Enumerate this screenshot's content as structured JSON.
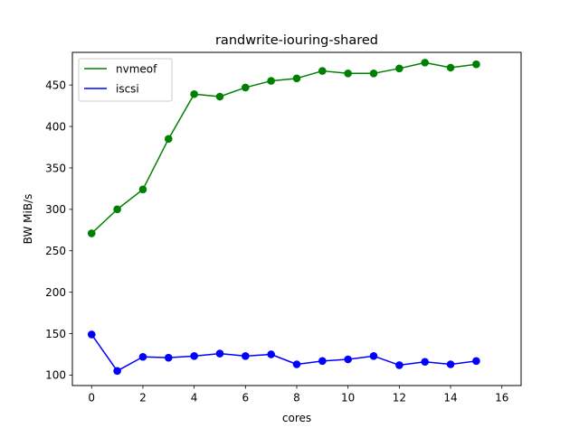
{
  "chart_data": {
    "type": "line",
    "title": "randwrite-iouring-shared",
    "xlabel": "cores",
    "ylabel": "BW MiB/s",
    "xlim": [
      -0.75,
      16.75
    ],
    "ylim": [
      87.4,
      489.4
    ],
    "xticks": [
      0,
      2,
      4,
      6,
      8,
      10,
      12,
      14,
      16
    ],
    "yticks": [
      100,
      150,
      200,
      250,
      300,
      350,
      400,
      450
    ],
    "grid": false,
    "legend_position": "top-left",
    "x": [
      0,
      1,
      2,
      3,
      4,
      5,
      6,
      7,
      8,
      9,
      10,
      11,
      12,
      13,
      14,
      15
    ],
    "series": [
      {
        "name": "nvmeof",
        "color": "#008000",
        "marker": "circle",
        "values": [
          271,
          300,
          324,
          385,
          439,
          436,
          447,
          455,
          458,
          467,
          464,
          464,
          470,
          477,
          471,
          475
        ]
      },
      {
        "name": "iscsi",
        "color": "#0000ff",
        "marker": "circle",
        "values": [
          149,
          105,
          122,
          121,
          123,
          126,
          123,
          125,
          113,
          117,
          119,
          123,
          112,
          116,
          113,
          117
        ]
      }
    ]
  }
}
